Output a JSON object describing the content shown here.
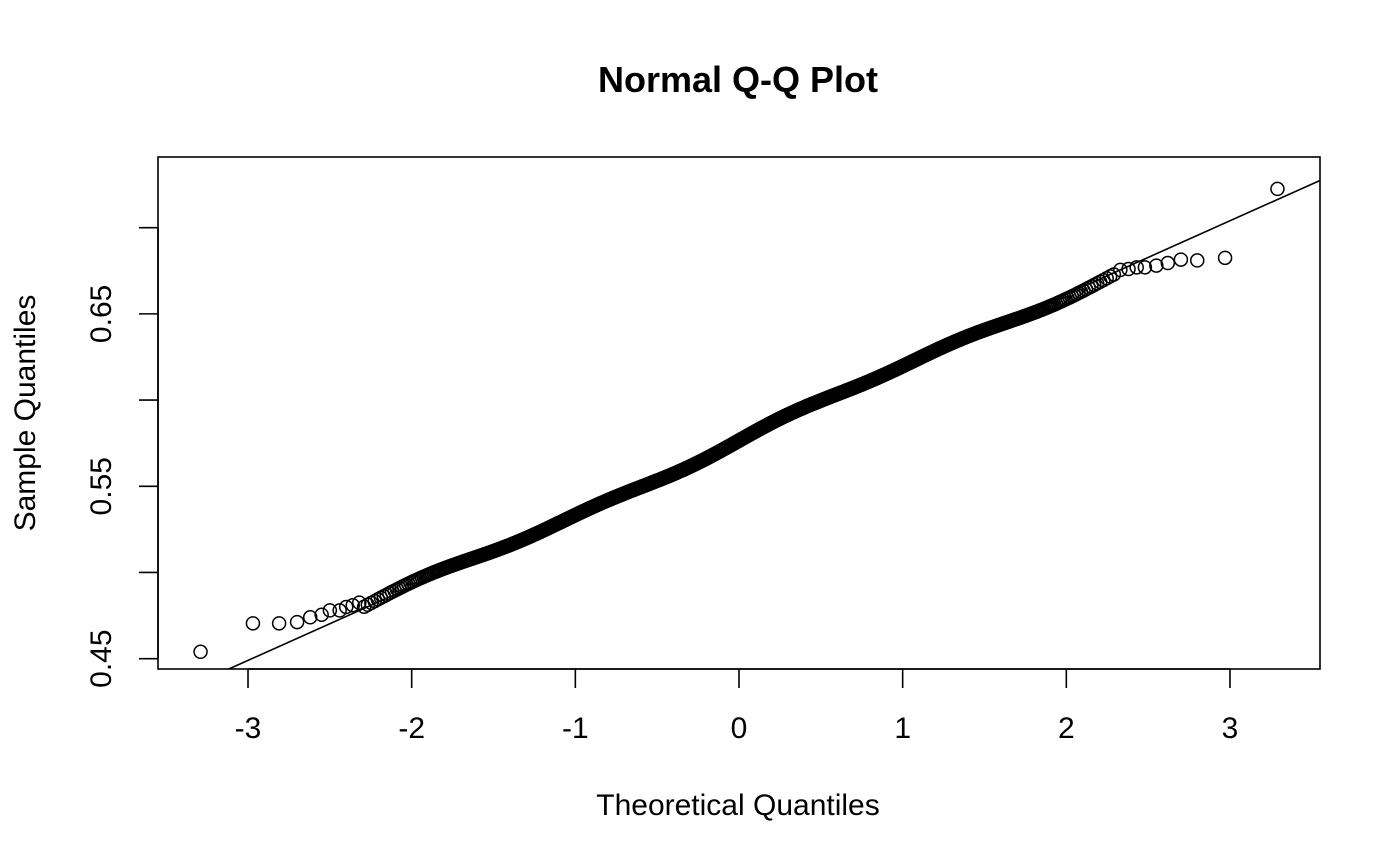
{
  "chart_data": {
    "type": "scatter",
    "title": "Normal Q-Q Plot",
    "xlabel": "Theoretical Quantiles",
    "ylabel": "Sample Quantiles",
    "xlim": [
      -3.55,
      3.55
    ],
    "ylim": [
      0.444,
      0.741
    ],
    "x_ticks": [
      -3,
      -2,
      -1,
      0,
      1,
      2,
      3
    ],
    "x_tick_labels": [
      "-3",
      "-2",
      "-1",
      "0",
      "1",
      "2",
      "3"
    ],
    "y_ticks": [
      0.45,
      0.5,
      0.55,
      0.6,
      0.65,
      0.7
    ],
    "y_tick_labels": [
      "0.45",
      "",
      "0.55",
      "",
      "0.65",
      ""
    ],
    "grid": false,
    "reference_line": {
      "intercept": 0.5765,
      "slope": 0.0425
    },
    "n_points": 1500,
    "outliers": [
      {
        "x": -3.29,
        "y": 0.454
      },
      {
        "x": -2.97,
        "y": 0.4705
      },
      {
        "x": -2.81,
        "y": 0.4705
      },
      {
        "x": -2.7,
        "y": 0.4712
      },
      {
        "x": -2.62,
        "y": 0.474
      },
      {
        "x": -2.55,
        "y": 0.4755
      },
      {
        "x": -2.5,
        "y": 0.478
      },
      {
        "x": -2.44,
        "y": 0.478
      },
      {
        "x": -2.4,
        "y": 0.48
      },
      {
        "x": -2.36,
        "y": 0.481
      },
      {
        "x": -2.32,
        "y": 0.4825
      },
      {
        "x": 2.33,
        "y": 0.6755
      },
      {
        "x": 2.38,
        "y": 0.676
      },
      {
        "x": 2.43,
        "y": 0.677
      },
      {
        "x": 2.48,
        "y": 0.677
      },
      {
        "x": 2.55,
        "y": 0.678
      },
      {
        "x": 2.62,
        "y": 0.6795
      },
      {
        "x": 2.7,
        "y": 0.6815
      },
      {
        "x": 2.8,
        "y": 0.681
      },
      {
        "x": 2.97,
        "y": 0.6825
      },
      {
        "x": 3.29,
        "y": 0.7225
      }
    ]
  }
}
